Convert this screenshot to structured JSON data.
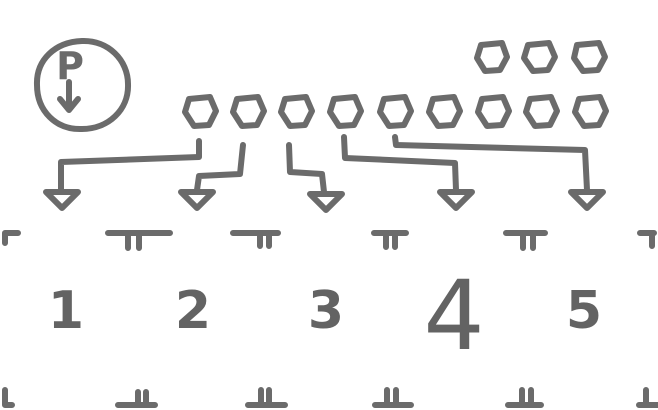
{
  "colors": {
    "stroke": "#6b6b6b",
    "background": "#ffffff"
  },
  "pause_icon": {
    "letter": "P"
  },
  "queue": {
    "top_row_count": 3,
    "bottom_row_count": 9
  },
  "lanes": [
    {
      "label": "1"
    },
    {
      "label": "2"
    },
    {
      "label": "3"
    },
    {
      "label": "4"
    },
    {
      "label": "5"
    }
  ]
}
